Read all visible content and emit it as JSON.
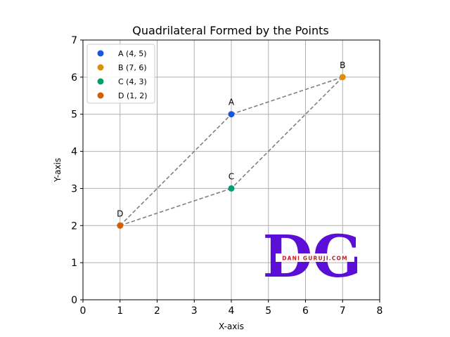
{
  "chart_data": {
    "type": "scatter",
    "title": "Quadrilateral Formed by the Points",
    "xlabel": "X-axis",
    "ylabel": "Y-axis",
    "xlim": [
      0,
      8
    ],
    "ylim": [
      0,
      7
    ],
    "xticks": [
      0,
      1,
      2,
      3,
      4,
      5,
      6,
      7,
      8
    ],
    "yticks": [
      0,
      1,
      2,
      3,
      4,
      5,
      6,
      7
    ],
    "grid": true,
    "legend_position": "top-left",
    "points": [
      {
        "label": "A",
        "legend": "A (4, 5)",
        "x": 4,
        "y": 5,
        "color": "#1a56db"
      },
      {
        "label": "B",
        "legend": "B (7, 6)",
        "x": 7,
        "y": 6,
        "color": "#de8f05"
      },
      {
        "label": "C",
        "legend": "C (4, 3)",
        "x": 4,
        "y": 3,
        "color": "#029e73"
      },
      {
        "label": "D",
        "legend": "D (1, 2)",
        "x": 1,
        "y": 2,
        "color": "#d55e00"
      }
    ],
    "polygon_order": [
      "A",
      "B",
      "C",
      "D"
    ],
    "polygon_color": "#808080",
    "watermark": {
      "letters": "DG",
      "text": "DANI GURUJI.COM"
    }
  }
}
